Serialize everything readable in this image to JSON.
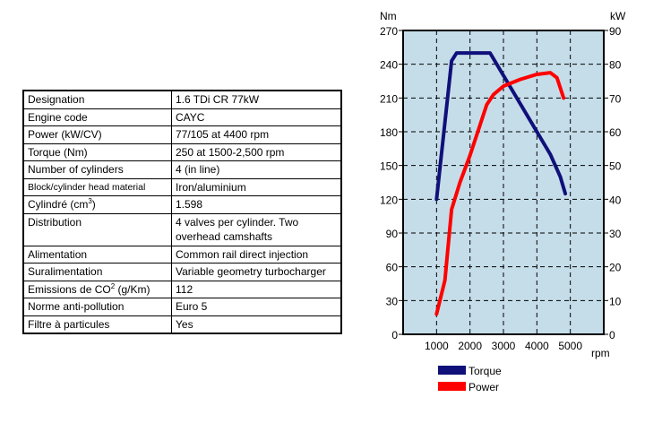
{
  "specs": [
    {
      "label": "Designation",
      "value": "1.6 TDi CR 77kW"
    },
    {
      "label": "Engine code",
      "value": "CAYC"
    },
    {
      "label": "Power (kW/CV)",
      "value": "77/105 at 4400 rpm"
    },
    {
      "label": "Torque (Nm)",
      "value": "250 at 1500-2,500 rpm"
    },
    {
      "label": "Number of cylinders",
      "value": "4 (in line)"
    },
    {
      "label": "Block/cylinder head material",
      "value": "Iron/aluminium"
    },
    {
      "label": "Cylindré (cm",
      "label_sup": "3",
      "label_after": ")",
      "value": "1.598"
    },
    {
      "label": "Distribution",
      "value": "4 valves per cylinder. Two overhead camshafts"
    },
    {
      "label": "Alimentation",
      "value": "Common rail direct injection"
    },
    {
      "label": "Suralimentation",
      "value": "Variable geometry turbocharger"
    },
    {
      "label": "Emissions de CO",
      "label_sup": "2",
      "label_after": " (g/Km)",
      "value": "112"
    },
    {
      "label": "Norme anti-pollution",
      "value": "Euro 5"
    },
    {
      "label": "Filtre à particules",
      "value": "Yes"
    }
  ],
  "chart_data": {
    "type": "line",
    "xlabel": "rpm",
    "ylabel_left": "Nm",
    "ylabel_right": "kW",
    "xlim": [
      0,
      6000
    ],
    "ylim_left": [
      0,
      270
    ],
    "ylim_right": [
      0,
      90
    ],
    "x_ticks": [
      1000,
      2000,
      3000,
      4000,
      5000
    ],
    "y_ticks_left": [
      0,
      30,
      60,
      90,
      120,
      150,
      180,
      210,
      240,
      270
    ],
    "y_ticks_right": [
      0,
      10,
      20,
      30,
      40,
      50,
      60,
      70,
      80,
      90
    ],
    "grid": true,
    "background": "#c5dde9",
    "legend_placement": "bottom",
    "series": [
      {
        "name": "Torque",
        "axis": "left",
        "color": "#10107a",
        "x": [
          1000,
          1450,
          1600,
          2600,
          3200,
          4000,
          4400,
          4700,
          4850
        ],
        "y": [
          120,
          243,
          250,
          250,
          220,
          180,
          160,
          140,
          125
        ]
      },
      {
        "name": "Power",
        "axis": "right",
        "color": "#ff0000",
        "x": [
          1000,
          1250,
          1450,
          1700,
          2000,
          2500,
          2700,
          3000,
          3500,
          4000,
          4400,
          4600,
          4800
        ],
        "y": [
          6,
          16,
          37,
          45,
          53,
          68,
          71,
          73.5,
          75.5,
          77,
          77.5,
          76,
          70
        ]
      }
    ]
  }
}
